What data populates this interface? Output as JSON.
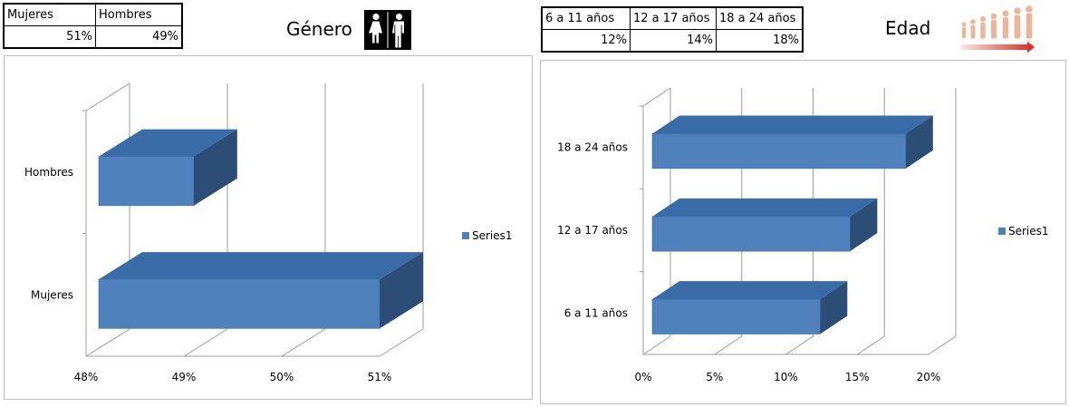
{
  "gender_table": {
    "headers": [
      "Mujeres",
      "Hombres"
    ],
    "values": [
      "51%",
      "49%"
    ]
  },
  "age_table": {
    "headers": [
      "6 a 11 años",
      "12 a 17 años",
      "18 a 24 años"
    ],
    "values": [
      "12%",
      "14%",
      "18%"
    ]
  },
  "headings": {
    "gender": "Género",
    "age": "Edad"
  },
  "icons": {
    "gender": "women-men-restroom-icon",
    "age": "age-progression-people-icon"
  },
  "colors": {
    "bar_front": "#4f81bd",
    "bar_top": "#3a6ca8",
    "bar_side": "#2c4d75"
  },
  "chart_data": [
    {
      "type": "bar",
      "orientation": "horizontal",
      "style": "3d",
      "categories": [
        "Mujeres",
        "Hombres"
      ],
      "series": [
        {
          "name": "Series1",
          "values": [
            51,
            49.1
          ]
        }
      ],
      "xlim": [
        48,
        51
      ],
      "xticks": [
        "48%",
        "49%",
        "50%",
        "51%"
      ],
      "legend": "right",
      "grid": true
    },
    {
      "type": "bar",
      "orientation": "horizontal",
      "style": "3d",
      "categories": [
        "6 a 11 años",
        "12 a 17 años",
        "18 a 24 años"
      ],
      "series": [
        {
          "name": "Series1",
          "values": [
            12.4,
            14.5,
            18.4
          ]
        }
      ],
      "xlim": [
        0,
        20
      ],
      "xticks": [
        "0%",
        "5%",
        "10%",
        "15%",
        "20%"
      ],
      "legend": "right",
      "grid": true
    }
  ]
}
